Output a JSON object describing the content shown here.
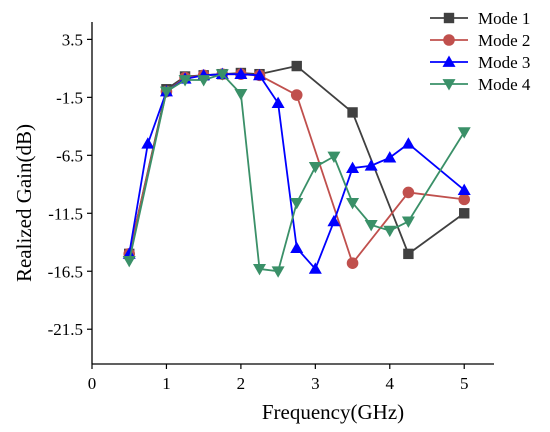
{
  "chart_data": {
    "type": "line",
    "title": "",
    "xlabel": "Frequency(GHz)",
    "ylabel": "Realized Gain(dB)",
    "xlim": [
      0,
      5.4
    ],
    "ylim": [
      -24.5,
      5
    ],
    "xticks": [
      0,
      1,
      2,
      3,
      4,
      5
    ],
    "yticks": [
      3.5,
      -1.5,
      -6.5,
      -11.5,
      -16.5,
      -21.5
    ],
    "xtick_labels": [
      "0",
      "1",
      "2",
      "3",
      "4",
      "5"
    ],
    "ytick_labels": [
      "3.5",
      "-1.5",
      "-6.5",
      "-11.5",
      "-16.5",
      "-21.5"
    ],
    "grid": false,
    "legend_position": "top-right",
    "series": [
      {
        "name": "Mode 1",
        "color": "#404040",
        "marker": "square",
        "x": [
          0.5,
          1.0,
          1.25,
          1.5,
          1.75,
          2.0,
          2.25,
          2.75,
          3.5,
          4.25,
          5.0
        ],
        "y": [
          -15.0,
          -0.8,
          0.3,
          0.4,
          0.5,
          0.6,
          0.5,
          1.2,
          -2.8,
          -15.0,
          -11.5
        ]
      },
      {
        "name": "Mode 2",
        "color": "#c0504d",
        "marker": "circle",
        "x": [
          0.5,
          1.0,
          1.25,
          1.5,
          1.75,
          2.0,
          2.25,
          2.75,
          3.5,
          4.25,
          5.0
        ],
        "y": [
          -15.0,
          -1.0,
          0.2,
          0.4,
          0.5,
          0.5,
          0.4,
          -1.3,
          -15.8,
          -9.7,
          -10.3
        ]
      },
      {
        "name": "Mode 3",
        "color": "#0000ff",
        "marker": "triangle-up",
        "x": [
          0.5,
          0.75,
          1.0,
          1.25,
          1.5,
          1.75,
          2.0,
          2.25,
          2.5,
          2.75,
          3.0,
          3.25,
          3.5,
          3.75,
          4.0,
          4.25,
          5.0
        ],
        "y": [
          -15.0,
          -5.5,
          -1.0,
          0.1,
          0.4,
          0.5,
          0.5,
          0.4,
          -2.0,
          -14.5,
          -16.3,
          -12.2,
          -7.6,
          -7.4,
          -6.7,
          -5.5,
          -9.5
        ]
      },
      {
        "name": "Mode 4",
        "color": "#3a9068",
        "marker": "triangle-down",
        "x": [
          0.5,
          1.0,
          1.25,
          1.5,
          1.75,
          2.0,
          2.25,
          2.5,
          2.75,
          3.0,
          3.25,
          3.5,
          3.75,
          4.0,
          4.25,
          5.0
        ],
        "y": [
          -15.6,
          -1.0,
          0.0,
          0.0,
          0.5,
          -1.2,
          -16.3,
          -16.5,
          -10.6,
          -7.5,
          -6.6,
          -10.6,
          -12.5,
          -13.0,
          -12.2,
          -4.5
        ]
      }
    ]
  }
}
